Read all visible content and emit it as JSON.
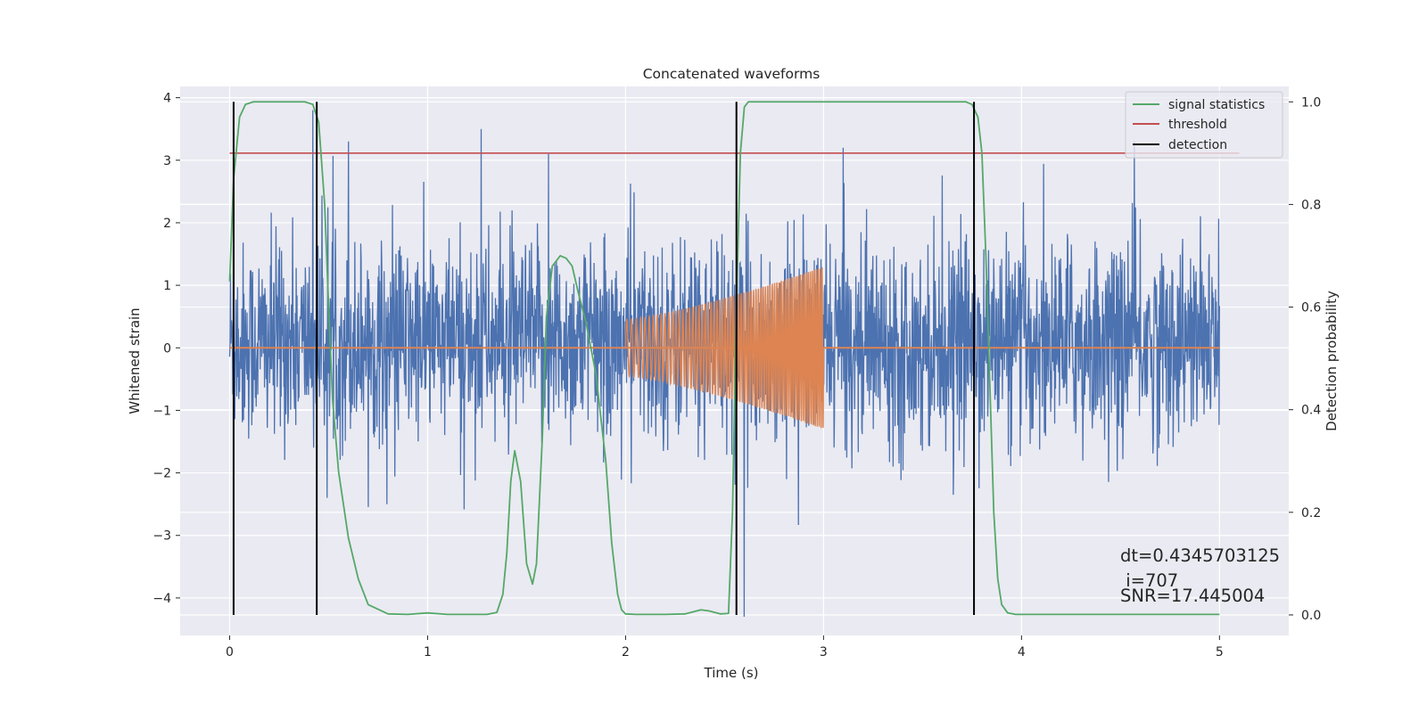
{
  "chart_data": {
    "type": "line",
    "title": "Concatenated waveforms",
    "xlabel": "Time (s)",
    "ylabel": "Whitened strain",
    "y2label": "Detection probability",
    "xlim": [
      -0.25,
      5.35
    ],
    "ylim": [
      -4.6,
      4.18
    ],
    "y2lim": [
      -0.04,
      1.03
    ],
    "xticks": [
      0,
      1,
      2,
      3,
      4,
      5
    ],
    "yticks": [
      -4,
      -3,
      -2,
      -1,
      0,
      1,
      2,
      3,
      4
    ],
    "y2ticks": [
      0.0,
      0.2,
      0.4,
      0.6,
      0.8,
      1.0
    ],
    "y2ticklabels": [
      "0.0",
      "0.2",
      "0.4",
      "0.6",
      "0.8",
      "1.0"
    ],
    "yticklabels": [
      "−4",
      "−3",
      "−2",
      "−1",
      "0",
      "1",
      "2",
      "3",
      "4"
    ],
    "grid": true,
    "legend_position": "top-right",
    "colors": {
      "strain": "#4c72b0",
      "template": "#dd8452",
      "signal_statistics": "#55a868",
      "threshold": "#c44e52",
      "detection": "#000000",
      "background": "#eaeaf2",
      "grid": "#ffffff"
    },
    "series": [
      {
        "name": "signal statistics",
        "axis": "right",
        "x": [
          0.0,
          0.02,
          0.05,
          0.08,
          0.12,
          0.2,
          0.3,
          0.38,
          0.42,
          0.45,
          0.48,
          0.5,
          0.52,
          0.55,
          0.6,
          0.65,
          0.7,
          0.8,
          0.9,
          1.0,
          1.1,
          1.2,
          1.3,
          1.35,
          1.38,
          1.4,
          1.42,
          1.44,
          1.47,
          1.5,
          1.53,
          1.55,
          1.58,
          1.6,
          1.63,
          1.67,
          1.7,
          1.73,
          1.76,
          1.8,
          1.85,
          1.9,
          1.93,
          1.96,
          1.98,
          2.0,
          2.05,
          2.1,
          2.2,
          2.3,
          2.38,
          2.42,
          2.48,
          2.52,
          2.54,
          2.56,
          2.58,
          2.6,
          2.62,
          2.65,
          2.7,
          2.8,
          3.0,
          3.2,
          3.4,
          3.6,
          3.68,
          3.72,
          3.75,
          3.78,
          3.8,
          3.82,
          3.84,
          3.86,
          3.88,
          3.9,
          3.93,
          3.97,
          4.05,
          4.2,
          4.5,
          5.0
        ],
        "values": [
          0.65,
          0.85,
          0.97,
          0.995,
          1.0,
          1.0,
          1.0,
          1.0,
          0.995,
          0.96,
          0.8,
          0.6,
          0.42,
          0.28,
          0.15,
          0.07,
          0.02,
          0.002,
          0.001,
          0.004,
          0.001,
          0.001,
          0.001,
          0.005,
          0.04,
          0.12,
          0.26,
          0.32,
          0.26,
          0.1,
          0.06,
          0.1,
          0.35,
          0.58,
          0.68,
          0.7,
          0.695,
          0.68,
          0.63,
          0.57,
          0.47,
          0.3,
          0.14,
          0.04,
          0.01,
          0.002,
          0.001,
          0.001,
          0.001,
          0.002,
          0.01,
          0.008,
          0.002,
          0.003,
          0.2,
          0.6,
          0.9,
          0.99,
          1.0,
          1.0,
          1.0,
          1.0,
          1.0,
          1.0,
          1.0,
          1.0,
          1.0,
          1.0,
          0.995,
          0.97,
          0.9,
          0.7,
          0.45,
          0.2,
          0.07,
          0.02,
          0.004,
          0.001,
          0.001,
          0.001,
          0.001,
          0.001
        ]
      },
      {
        "name": "threshold",
        "axis": "right",
        "x": [
          0.0,
          5.1
        ],
        "values": [
          0.9,
          0.9
        ]
      },
      {
        "name": "detection",
        "axis": "right",
        "type": "vlines",
        "x": [
          0.02,
          0.44,
          2.56,
          3.76
        ],
        "ymin": 0.0,
        "ymax": 1.0
      },
      {
        "axis": "left",
        "type": "noise",
        "x_range": [
          0.0,
          5.0
        ],
        "points": 2500,
        "typical_range": [
          -2.0,
          2.2
        ],
        "x_peaks": [
          0.02,
          0.42,
          0.6,
          1.27,
          1.61,
          2.6,
          3.1,
          4.57
        ],
        "value_peaks": [
          3.8,
          3.8,
          3.3,
          3.5,
          3.1,
          -4.3,
          3.2,
          3.3
        ]
      },
      {
        "axis": "left",
        "type": "chirp",
        "x_range": [
          2.0,
          3.0
        ],
        "amplitude_start": 0.45,
        "amplitude_end": 1.3,
        "flat_value": 0.0,
        "flat_x_range": [
          0.0,
          5.0
        ]
      }
    ],
    "annotations": [
      "dt=0.4345703125",
      " i=707",
      "SNR=17.445004"
    ],
    "legend": [
      "signal statistics",
      "threshold",
      "detection"
    ]
  }
}
